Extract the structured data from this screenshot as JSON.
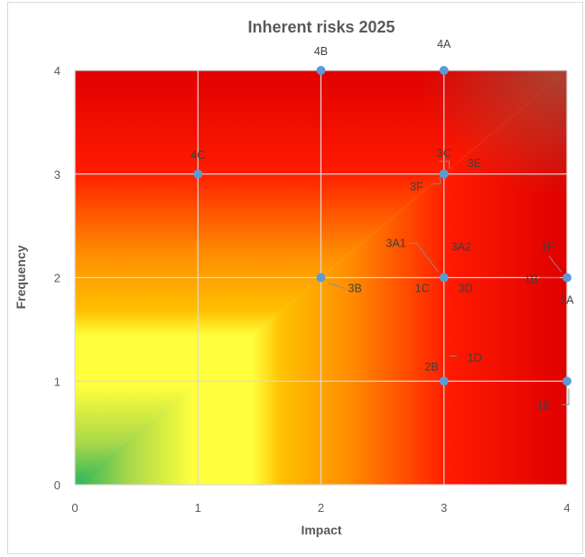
{
  "chart_data": {
    "type": "scatter",
    "title": "Inherent risks 2025",
    "xlabel": "Impact",
    "ylabel": "Frequency",
    "xlim": [
      0,
      4
    ],
    "ylim": [
      0,
      4
    ],
    "x_ticks": [
      "0",
      "1",
      "2",
      "3",
      "4"
    ],
    "y_ticks": [
      "0",
      "1",
      "2",
      "3",
      "4"
    ],
    "grid": true,
    "background": "heatmap gradient: green (low) through yellow, orange to red (high impact and frequency)",
    "colors": {
      "marker": "#5b9bd5",
      "green": "#2bb45c",
      "yellow": "#ffff3c",
      "orange": "#ffa500",
      "red": "#ff0000",
      "dark_red": "#a0503c"
    },
    "points": [
      {
        "label": "4A",
        "x": 3,
        "y": 4
      },
      {
        "label": "4B",
        "x": 2,
        "y": 4
      },
      {
        "label": "4C",
        "x": 1,
        "y": 3
      },
      {
        "label": "3C",
        "x": 3,
        "y": 3
      },
      {
        "label": "3E",
        "x": 3,
        "y": 3
      },
      {
        "label": "3F",
        "x": 3,
        "y": 3
      },
      {
        "label": "3A1",
        "x": 3,
        "y": 2
      },
      {
        "label": "3A2",
        "x": 3,
        "y": 2
      },
      {
        "label": "1C",
        "x": 3,
        "y": 2
      },
      {
        "label": "3D",
        "x": 3,
        "y": 2
      },
      {
        "label": "3B",
        "x": 2,
        "y": 2
      },
      {
        "label": "1F",
        "x": 4,
        "y": 2
      },
      {
        "label": "1B",
        "x": 4,
        "y": 2
      },
      {
        "label": "1A",
        "x": 4,
        "y": 2
      },
      {
        "label": "2B",
        "x": 3,
        "y": 1
      },
      {
        "label": "1D",
        "x": 3,
        "y": 1
      },
      {
        "label": "1E",
        "x": 4,
        "y": 1
      }
    ]
  }
}
